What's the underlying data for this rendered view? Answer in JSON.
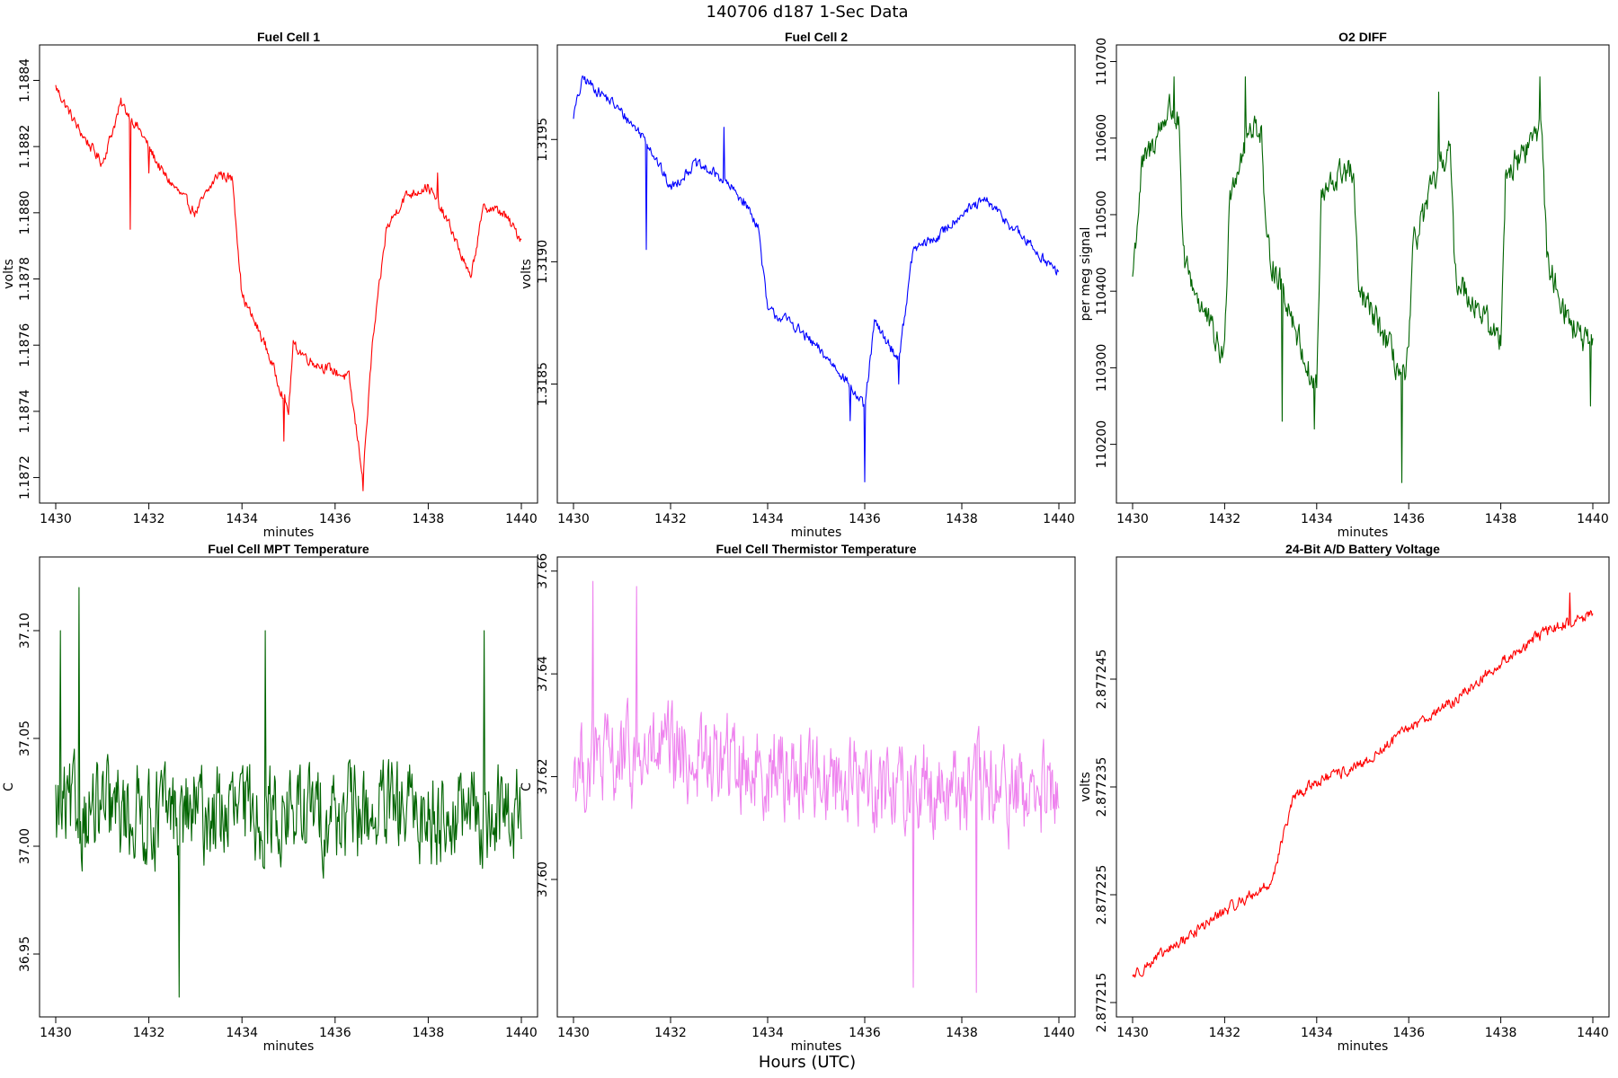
{
  "figure": {
    "title": "140706   d187   1-Sec Data",
    "xlabel_bottom": "Hours (UTC)"
  },
  "chart_data": [
    {
      "type": "line",
      "title": "Fuel Cell 1",
      "xlabel": "minutes",
      "ylabel": "volts",
      "color": "#ff0000",
      "xlim": [
        1430,
        1440
      ],
      "ylim": [
        1.18715,
        1.18848
      ],
      "xticks": [
        "1430",
        "1432",
        "1434",
        "1436",
        "1438",
        "1440"
      ],
      "yticks": [
        "1.1872",
        "1.1874",
        "1.1876",
        "1.1878",
        "1.1880",
        "1.1882",
        "1.1884"
      ],
      "trend": [
        [
          1430,
          1.18838
        ],
        [
          1430.5,
          1.18825
        ],
        [
          1431,
          1.18815
        ],
        [
          1431.4,
          1.18833
        ],
        [
          1431.8,
          1.18825
        ],
        [
          1432.3,
          1.18812
        ],
        [
          1433,
          1.188
        ],
        [
          1433.5,
          1.18812
        ],
        [
          1433.8,
          1.1881
        ],
        [
          1434,
          1.18775
        ],
        [
          1434.5,
          1.1876
        ],
        [
          1435,
          1.1874
        ],
        [
          1435.1,
          1.1876
        ],
        [
          1435.5,
          1.18755
        ],
        [
          1436,
          1.18752
        ],
        [
          1436.3,
          1.1875
        ],
        [
          1436.6,
          1.1872
        ],
        [
          1436.8,
          1.1876
        ],
        [
          1437.1,
          1.18795
        ],
        [
          1437.5,
          1.18805
        ],
        [
          1438,
          1.18808
        ],
        [
          1438.5,
          1.18795
        ],
        [
          1438.9,
          1.1878
        ],
        [
          1439.2,
          1.18802
        ],
        [
          1439.6,
          1.188
        ],
        [
          1440,
          1.18792
        ]
      ],
      "noise": 2.5e-05,
      "spikes": [
        [
          1431.6,
          1.18795
        ],
        [
          1432.0,
          1.18812
        ],
        [
          1434.9,
          1.18731
        ],
        [
          1436.6,
          1.18716
        ],
        [
          1438.2,
          1.18812
        ]
      ]
    },
    {
      "type": "line",
      "title": "Fuel Cell 2",
      "xlabel": "minutes",
      "ylabel": "volts",
      "color": "#0000ff",
      "xlim": [
        1430,
        1440
      ],
      "ylim": [
        1.31805,
        1.31985
      ],
      "xticks": [
        "1430",
        "1432",
        "1434",
        "1436",
        "1438",
        "1440"
      ],
      "yticks": [
        "1.3185",
        "1.3190",
        "1.3195"
      ],
      "trend": [
        [
          1430,
          1.3196
        ],
        [
          1430.2,
          1.31975
        ],
        [
          1430.8,
          1.31965
        ],
        [
          1431.5,
          1.3195
        ],
        [
          1432,
          1.3193
        ],
        [
          1432.5,
          1.3194
        ],
        [
          1433,
          1.31935
        ],
        [
          1433.5,
          1.31925
        ],
        [
          1433.8,
          1.31915
        ],
        [
          1434,
          1.3188
        ],
        [
          1434.5,
          1.31875
        ],
        [
          1435,
          1.31865
        ],
        [
          1435.5,
          1.31855
        ],
        [
          1436,
          1.3184
        ],
        [
          1436.2,
          1.31875
        ],
        [
          1436.7,
          1.3186
        ],
        [
          1437,
          1.31905
        ],
        [
          1437.5,
          1.3191
        ],
        [
          1438,
          1.3192
        ],
        [
          1438.5,
          1.31925
        ],
        [
          1439,
          1.31915
        ],
        [
          1439.5,
          1.31905
        ],
        [
          1440,
          1.31895
        ]
      ],
      "noise": 3.5e-05,
      "spikes": [
        [
          1431.5,
          1.31905
        ],
        [
          1433.1,
          1.31955
        ],
        [
          1435.7,
          1.31835
        ],
        [
          1436.0,
          1.3181
        ],
        [
          1436.7,
          1.3185
        ]
      ]
    },
    {
      "type": "line",
      "title": "O2 DIFF",
      "xlabel": "minutes",
      "ylabel": "per meg signal",
      "color": "#006400",
      "xlim": [
        1430,
        1440
      ],
      "ylim": [
        110135,
        110710
      ],
      "xticks": [
        "1430",
        "1432",
        "1434",
        "1436",
        "1438",
        "1440"
      ],
      "yticks": [
        "110200",
        "110300",
        "110400",
        "110500",
        "110600",
        "110700"
      ],
      "trend": [
        [
          1430,
          110420
        ],
        [
          1430.2,
          110560
        ],
        [
          1430.8,
          110640
        ],
        [
          1431.0,
          110620
        ],
        [
          1431.1,
          110440
        ],
        [
          1431.5,
          110380
        ],
        [
          1431.9,
          110320
        ],
        [
          1432.0,
          110320
        ],
        [
          1432.1,
          110530
        ],
        [
          1432.6,
          110620
        ],
        [
          1432.8,
          110610
        ],
        [
          1432.9,
          110460
        ],
        [
          1433.4,
          110380
        ],
        [
          1433.9,
          110280
        ],
        [
          1434.0,
          110280
        ],
        [
          1434.1,
          110520
        ],
        [
          1434.6,
          110560
        ],
        [
          1434.8,
          110550
        ],
        [
          1434.9,
          110400
        ],
        [
          1435.4,
          110350
        ],
        [
          1435.9,
          110280
        ],
        [
          1436.0,
          110320
        ],
        [
          1436.1,
          110460
        ],
        [
          1436.6,
          110550
        ],
        [
          1436.9,
          110590
        ],
        [
          1437.0,
          110420
        ],
        [
          1437.5,
          110380
        ],
        [
          1437.9,
          110340
        ],
        [
          1438.0,
          110340
        ],
        [
          1438.1,
          110550
        ],
        [
          1438.6,
          110590
        ],
        [
          1438.9,
          110620
        ],
        [
          1439.0,
          110440
        ],
        [
          1439.5,
          110360
        ],
        [
          1440,
          110320
        ]
      ],
      "noise": 30,
      "spikes": [
        [
          1430.9,
          110680
        ],
        [
          1432.45,
          110680
        ],
        [
          1433.25,
          110230
        ],
        [
          1433.95,
          110220
        ],
        [
          1435.85,
          110150
        ],
        [
          1436.65,
          110660
        ],
        [
          1438.85,
          110680
        ],
        [
          1439.95,
          110250
        ]
      ]
    },
    {
      "type": "line",
      "title": "Fuel Cell MPT Temperature",
      "xlabel": "minutes",
      "ylabel": "C",
      "color": "#006400",
      "xlim": [
        1430,
        1440
      ],
      "ylim": [
        36.925,
        37.13
      ],
      "xticks": [
        "1430",
        "1432",
        "1434",
        "1436",
        "1438",
        "1440"
      ],
      "yticks": [
        "36.95",
        "37.00",
        "37.05",
        "37.10"
      ],
      "trend": [
        [
          1430,
          37.015
        ],
        [
          1440,
          37.015
        ]
      ],
      "noise": 0.035,
      "spikes": [
        [
          1430.1,
          37.1
        ],
        [
          1430.5,
          37.12
        ],
        [
          1432.65,
          36.93
        ],
        [
          1434.5,
          37.1
        ],
        [
          1439.2,
          37.1
        ]
      ]
    },
    {
      "type": "line",
      "title": "Fuel Cell Thermistor Temperature",
      "xlabel": "minutes",
      "ylabel": "C",
      "color": "#ee82ee",
      "xlim": [
        1430,
        1440
      ],
      "ylim": [
        37.575,
        37.661
      ],
      "xticks": [
        "1430",
        "1432",
        "1434",
        "1436",
        "1438",
        "1440"
      ],
      "yticks": [
        "37.60",
        "37.62",
        "37.64",
        "37.66"
      ],
      "trend": [
        [
          1430,
          37.622
        ],
        [
          1432,
          37.624
        ],
        [
          1436,
          37.619
        ],
        [
          1440,
          37.616
        ]
      ],
      "noise": 0.014,
      "spikes": [
        [
          1430.4,
          37.658
        ],
        [
          1431.3,
          37.657
        ],
        [
          1437.0,
          37.579
        ],
        [
          1438.3,
          37.578
        ]
      ]
    },
    {
      "type": "line",
      "title": "24-Bit A/D Battery Voltage",
      "xlabel": "minutes",
      "ylabel": "volts",
      "color": "#ff0000",
      "xlim": [
        1430,
        1440
      ],
      "ylim": [
        2.8772145,
        2.8772555
      ],
      "xticks": [
        "1430",
        "1432",
        "1434",
        "1436",
        "1438",
        "1440"
      ],
      "yticks": [
        "2.877215",
        "2.877225",
        "2.877235",
        "2.877245"
      ],
      "trend": [
        [
          1430,
          2.8772175
        ],
        [
          1431,
          2.8772205
        ],
        [
          1432,
          2.8772235
        ],
        [
          1433,
          2.877226
        ],
        [
          1433.5,
          2.877234
        ],
        [
          1434,
          2.8772355
        ],
        [
          1435,
          2.877237
        ],
        [
          1436,
          2.8772405
        ],
        [
          1437,
          2.877243
        ],
        [
          1438,
          2.8772465
        ],
        [
          1439,
          2.8772495
        ],
        [
          1440,
          2.877251
        ]
      ],
      "noise": 8e-07,
      "spikes": [
        [
          1439.5,
          2.877253
        ]
      ]
    }
  ]
}
